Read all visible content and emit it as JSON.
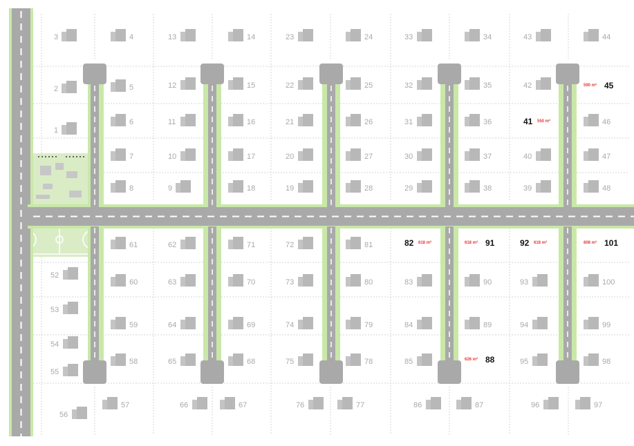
{
  "colors": {
    "road": "#a9a9a9",
    "road_edge": "#c9e8a8",
    "plot_line": "#cfcfcf",
    "house": "#c0c0c0",
    "number": "#a9a9a9",
    "highlight_number": "#111111",
    "area_label": "#e53935",
    "park": "#d9ecc6"
  },
  "plots": [
    {
      "id": "3"
    },
    {
      "id": "2"
    },
    {
      "id": "1"
    },
    {
      "id": "4"
    },
    {
      "id": "5"
    },
    {
      "id": "6"
    },
    {
      "id": "7"
    },
    {
      "id": "8"
    },
    {
      "id": "13"
    },
    {
      "id": "12"
    },
    {
      "id": "11"
    },
    {
      "id": "10"
    },
    {
      "id": "9"
    },
    {
      "id": "14"
    },
    {
      "id": "15"
    },
    {
      "id": "16"
    },
    {
      "id": "17"
    },
    {
      "id": "18"
    },
    {
      "id": "23"
    },
    {
      "id": "22"
    },
    {
      "id": "21"
    },
    {
      "id": "20"
    },
    {
      "id": "19"
    },
    {
      "id": "24"
    },
    {
      "id": "25"
    },
    {
      "id": "26"
    },
    {
      "id": "27"
    },
    {
      "id": "28"
    },
    {
      "id": "33"
    },
    {
      "id": "32"
    },
    {
      "id": "31"
    },
    {
      "id": "30"
    },
    {
      "id": "29"
    },
    {
      "id": "34"
    },
    {
      "id": "35"
    },
    {
      "id": "36"
    },
    {
      "id": "37"
    },
    {
      "id": "38"
    },
    {
      "id": "43"
    },
    {
      "id": "42"
    },
    {
      "id": "41",
      "area": "550 m²"
    },
    {
      "id": "40"
    },
    {
      "id": "39"
    },
    {
      "id": "44"
    },
    {
      "id": "45",
      "area": "590 m²"
    },
    {
      "id": "46"
    },
    {
      "id": "47"
    },
    {
      "id": "48"
    },
    {
      "id": "52"
    },
    {
      "id": "53"
    },
    {
      "id": "54"
    },
    {
      "id": "55"
    },
    {
      "id": "56"
    },
    {
      "id": "61"
    },
    {
      "id": "60"
    },
    {
      "id": "59"
    },
    {
      "id": "58"
    },
    {
      "id": "57"
    },
    {
      "id": "62"
    },
    {
      "id": "63"
    },
    {
      "id": "64"
    },
    {
      "id": "65"
    },
    {
      "id": "66"
    },
    {
      "id": "71"
    },
    {
      "id": "70"
    },
    {
      "id": "69"
    },
    {
      "id": "68"
    },
    {
      "id": "67"
    },
    {
      "id": "72"
    },
    {
      "id": "73"
    },
    {
      "id": "74"
    },
    {
      "id": "75"
    },
    {
      "id": "76"
    },
    {
      "id": "81"
    },
    {
      "id": "80"
    },
    {
      "id": "79"
    },
    {
      "id": "78"
    },
    {
      "id": "77"
    },
    {
      "id": "82",
      "area": "618 m²"
    },
    {
      "id": "83"
    },
    {
      "id": "84"
    },
    {
      "id": "85"
    },
    {
      "id": "86"
    },
    {
      "id": "91",
      "area": "618 m²"
    },
    {
      "id": "90"
    },
    {
      "id": "89"
    },
    {
      "id": "88",
      "area": "626 m²"
    },
    {
      "id": "87"
    },
    {
      "id": "92",
      "area": "618 m²"
    },
    {
      "id": "93"
    },
    {
      "id": "94"
    },
    {
      "id": "95"
    },
    {
      "id": "96"
    },
    {
      "id": "101",
      "area": "808 m²"
    },
    {
      "id": "100"
    },
    {
      "id": "99"
    },
    {
      "id": "98"
    },
    {
      "id": "97"
    }
  ]
}
